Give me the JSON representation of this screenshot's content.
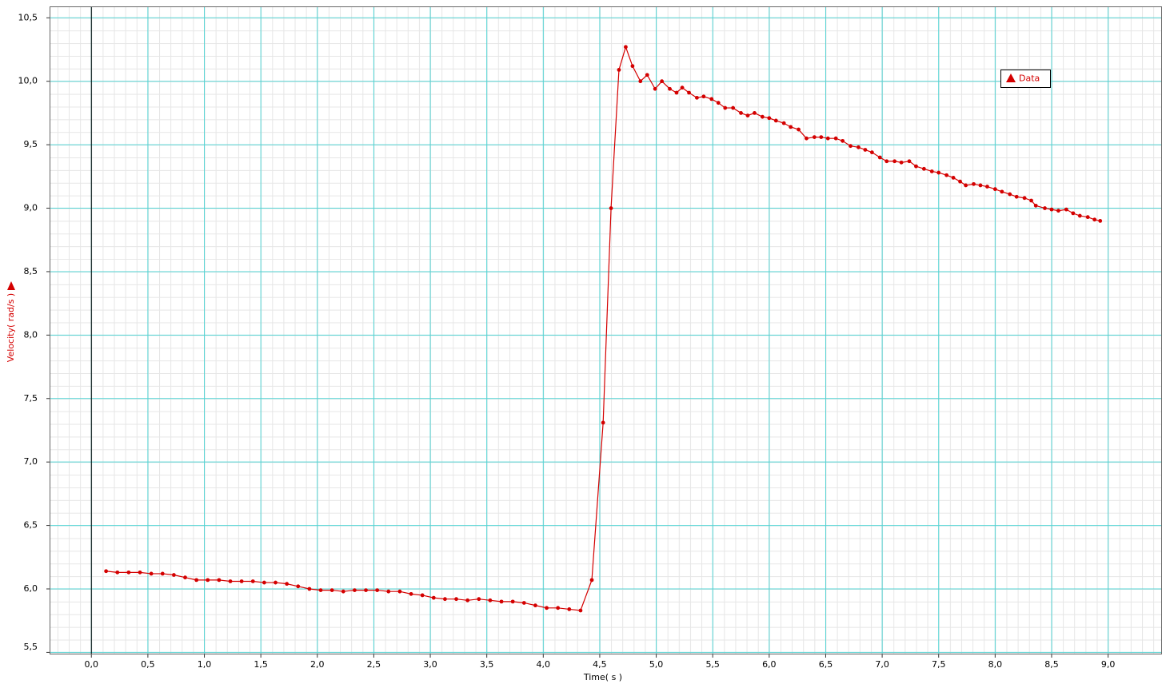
{
  "chart_data": {
    "type": "line",
    "x_label": "Time( s )",
    "y_label": "Velocity( rad/s )",
    "x": [
      0.13,
      0.23,
      0.33,
      0.43,
      0.53,
      0.63,
      0.73,
      0.83,
      0.93,
      1.03,
      1.13,
      1.23,
      1.33,
      1.43,
      1.53,
      1.63,
      1.73,
      1.83,
      1.93,
      2.03,
      2.13,
      2.23,
      2.33,
      2.43,
      2.53,
      2.63,
      2.73,
      2.83,
      2.93,
      3.03,
      3.13,
      3.23,
      3.33,
      3.43,
      3.53,
      3.63,
      3.73,
      3.83,
      3.93,
      4.03,
      4.13,
      4.23,
      4.33,
      4.43,
      4.53,
      4.6,
      4.67,
      4.73,
      4.79,
      4.86,
      4.92,
      4.99,
      5.05,
      5.12,
      5.18,
      5.23,
      5.29,
      5.36,
      5.42,
      5.49,
      5.55,
      5.61,
      5.68,
      5.75,
      5.81,
      5.87,
      5.94,
      6.0,
      6.06,
      6.13,
      6.19,
      6.26,
      6.33,
      6.4,
      6.46,
      6.52,
      6.59,
      6.65,
      6.72,
      6.79,
      6.85,
      6.91,
      6.98,
      7.04,
      7.11,
      7.17,
      7.24,
      7.3,
      7.37,
      7.44,
      7.5,
      7.57,
      7.63,
      7.69,
      7.74,
      7.81,
      7.87,
      7.93,
      8.0,
      8.06,
      8.13,
      8.19,
      8.26,
      8.32,
      8.36,
      8.44,
      8.5,
      8.56,
      8.63,
      8.69,
      8.75,
      8.82,
      8.88,
      8.93
    ],
    "series": [
      {
        "name": "Data",
        "color": "#d40000",
        "values": [
          6.14,
          6.13,
          6.13,
          6.13,
          6.12,
          6.12,
          6.11,
          6.09,
          6.07,
          6.07,
          6.07,
          6.06,
          6.06,
          6.06,
          6.05,
          6.05,
          6.04,
          6.02,
          6.0,
          5.99,
          5.99,
          5.98,
          5.99,
          5.99,
          5.99,
          5.98,
          5.98,
          5.96,
          5.95,
          5.93,
          5.92,
          5.92,
          5.91,
          5.92,
          5.91,
          5.9,
          5.9,
          5.89,
          5.87,
          5.85,
          5.85,
          5.84,
          5.83,
          6.07,
          7.31,
          9.0,
          10.09,
          10.27,
          10.12,
          10.0,
          10.05,
          9.94,
          10.0,
          9.94,
          9.91,
          9.95,
          9.91,
          9.87,
          9.88,
          9.86,
          9.83,
          9.79,
          9.79,
          9.75,
          9.73,
          9.75,
          9.72,
          9.71,
          9.69,
          9.67,
          9.64,
          9.62,
          9.55,
          9.56,
          9.56,
          9.55,
          9.55,
          9.53,
          9.49,
          9.48,
          9.46,
          9.44,
          9.4,
          9.37,
          9.37,
          9.36,
          9.37,
          9.33,
          9.31,
          9.29,
          9.28,
          9.26,
          9.24,
          9.21,
          9.18,
          9.19,
          9.18,
          9.17,
          9.15,
          9.13,
          9.11,
          9.09,
          9.08,
          9.06,
          9.02,
          9.0,
          8.99,
          8.98,
          8.99,
          8.96,
          8.94,
          8.93,
          8.91,
          8.9
        ]
      }
    ],
    "xlim": [
      -0.37,
      9.47
    ],
    "ylim": [
      5.49,
      10.59
    ],
    "xticks": [
      {
        "value": 0,
        "label": "0,0"
      },
      {
        "value": 0.5,
        "label": "0,5"
      },
      {
        "value": 1,
        "label": "1,0"
      },
      {
        "value": 1.5,
        "label": "1,5"
      },
      {
        "value": 2,
        "label": "2,0"
      },
      {
        "value": 2.5,
        "label": "2,5"
      },
      {
        "value": 3,
        "label": "3,0"
      },
      {
        "value": 3.5,
        "label": "3,5"
      },
      {
        "value": 4,
        "label": "4,0"
      },
      {
        "value": 4.5,
        "label": "4,5"
      },
      {
        "value": 5,
        "label": "5,0"
      },
      {
        "value": 5.5,
        "label": "5,5"
      },
      {
        "value": 6,
        "label": "6,0"
      },
      {
        "value": 6.5,
        "label": "6,5"
      },
      {
        "value": 7,
        "label": "7,0"
      },
      {
        "value": 7.5,
        "label": "7,5"
      },
      {
        "value": 8,
        "label": "8,0"
      },
      {
        "value": 8.5,
        "label": "8,5"
      },
      {
        "value": 9,
        "label": "9,0"
      }
    ],
    "yticks": [
      {
        "value": 5.5,
        "label": "5,5"
      },
      {
        "value": 6,
        "label": "6,0"
      },
      {
        "value": 6.5,
        "label": "6,5"
      },
      {
        "value": 7,
        "label": "7,0"
      },
      {
        "value": 7.5,
        "label": "7,5"
      },
      {
        "value": 8,
        "label": "8,0"
      },
      {
        "value": 8.5,
        "label": "8,5"
      },
      {
        "value": 9,
        "label": "9,0"
      },
      {
        "value": 9.5,
        "label": "9,5"
      },
      {
        "value": 10,
        "label": "10,0"
      },
      {
        "value": 10.5,
        "label": "10,5"
      }
    ],
    "grid": true,
    "legend": "upper right"
  }
}
